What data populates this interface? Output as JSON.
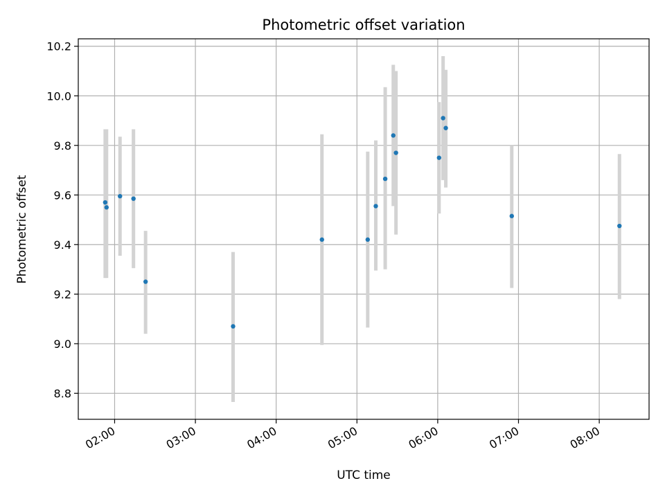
{
  "chart_data": {
    "type": "scatter",
    "title": "Photometric offset variation",
    "xlabel": "UTC time",
    "ylabel": "Photometric offset",
    "xlim": [
      "01:33",
      "08:37"
    ],
    "ylim": [
      8.695,
      10.23
    ],
    "grid": true,
    "x_ticks": [
      "02:00",
      "03:00",
      "04:00",
      "05:00",
      "06:00",
      "07:00",
      "08:00"
    ],
    "y_ticks": [
      "8.8",
      "9.0",
      "9.2",
      "9.4",
      "9.6",
      "9.8",
      "10.0",
      "10.2"
    ],
    "colors": {
      "points": "#1f77b4",
      "errorbars": "#d3d3d3",
      "grid": "#b0b0b0",
      "axes": "#000000"
    },
    "points": [
      {
        "x": "01:53",
        "y": 9.57,
        "err_low": 9.265,
        "err_high": 9.865
      },
      {
        "x": "01:54",
        "y": 9.55,
        "err_low": 9.265,
        "err_high": 9.865
      },
      {
        "x": "02:04",
        "y": 9.595,
        "err_low": 9.355,
        "err_high": 9.835
      },
      {
        "x": "02:14",
        "y": 9.585,
        "err_low": 9.305,
        "err_high": 9.865
      },
      {
        "x": "02:23",
        "y": 9.25,
        "err_low": 9.04,
        "err_high": 9.455
      },
      {
        "x": "03:28",
        "y": 9.07,
        "err_low": 8.765,
        "err_high": 9.37
      },
      {
        "x": "04:34",
        "y": 9.42,
        "err_low": 8.995,
        "err_high": 9.845
      },
      {
        "x": "05:08",
        "y": 9.42,
        "err_low": 9.065,
        "err_high": 9.775
      },
      {
        "x": "05:14",
        "y": 9.555,
        "err_low": 9.295,
        "err_high": 9.82
      },
      {
        "x": "05:21",
        "y": 9.665,
        "err_low": 9.3,
        "err_high": 10.035
      },
      {
        "x": "05:27",
        "y": 9.84,
        "err_low": 9.555,
        "err_high": 10.125
      },
      {
        "x": "05:29",
        "y": 9.77,
        "err_low": 9.44,
        "err_high": 10.1
      },
      {
        "x": "06:01",
        "y": 9.75,
        "err_low": 9.525,
        "err_high": 9.975
      },
      {
        "x": "06:04",
        "y": 9.91,
        "err_low": 9.66,
        "err_high": 10.16
      },
      {
        "x": "06:06",
        "y": 9.87,
        "err_low": 9.63,
        "err_high": 10.105
      },
      {
        "x": "06:55",
        "y": 9.515,
        "err_low": 9.225,
        "err_high": 9.8
      },
      {
        "x": "08:15",
        "y": 9.475,
        "err_low": 9.18,
        "err_high": 9.765
      }
    ]
  }
}
